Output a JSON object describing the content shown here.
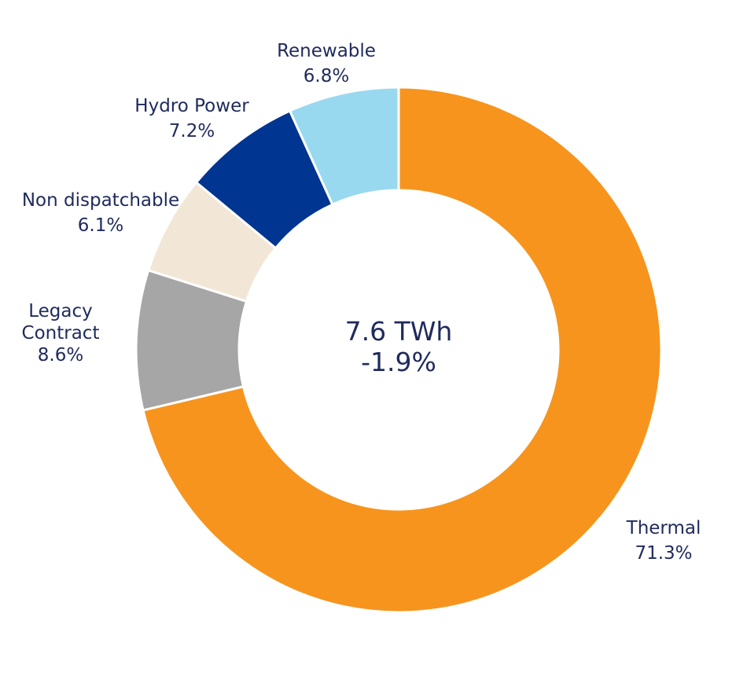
{
  "chart_data": {
    "type": "pie",
    "variant": "donut",
    "center_text": [
      "7.6 TWh",
      "-1.9%"
    ],
    "start_angle_deg": 0,
    "direction": "clockwise",
    "slices": [
      {
        "label": [
          "Thermal"
        ],
        "value": 71.3,
        "value_label": "71.3%",
        "color": "#F7941D"
      },
      {
        "label": [
          "Legacy",
          "Contract"
        ],
        "value": 8.6,
        "value_label": "8.6%",
        "color": "#A6A6A6"
      },
      {
        "label": [
          "Non dispatchable"
        ],
        "value": 6.1,
        "value_label": "6.1%",
        "color": "#F2E6D6"
      },
      {
        "label": [
          "Hydro Power"
        ],
        "value": 7.2,
        "value_label": "7.2%",
        "color": "#003591"
      },
      {
        "label": [
          "Renewable"
        ],
        "value": 6.8,
        "value_label": "6.8%",
        "color": "#99D9F0"
      }
    ]
  }
}
